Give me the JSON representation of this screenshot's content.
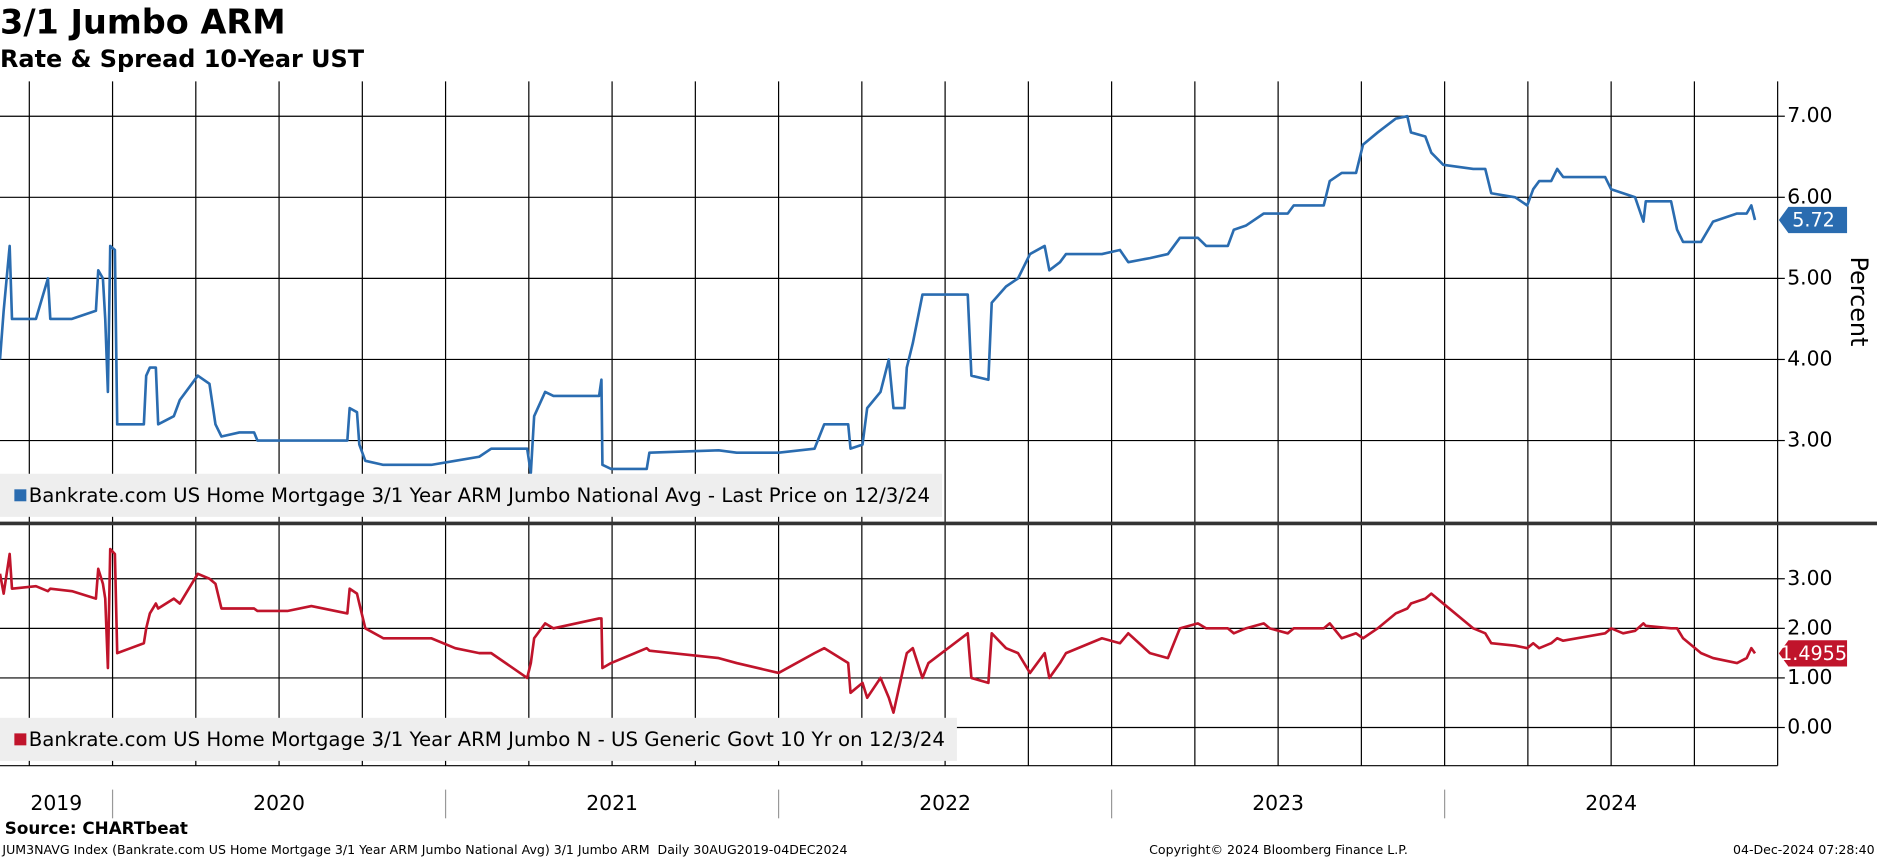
{
  "header": {
    "title": "3/1 Jumbo ARM",
    "subtitle": "Rate & Spread 10-Year UST"
  },
  "footer": {
    "source": "Source: CHARTbeat",
    "left": "JUM3NAVG Index (Bankrate.com US Home Mortgage 3/1 Year ARM Jumbo National Avg) 3/1 Jumbo ARM  Daily 30AUG2019-04DEC2024",
    "center": "Copyright© 2024 Bloomberg Finance L.P.",
    "right": "04-Dec-2024 07:28:40"
  },
  "chart_data": {
    "type": "line",
    "y_label": "Percent",
    "grid": true,
    "xlim": [
      2019.662,
      2025.0
    ],
    "xticks": [
      2019,
      2020,
      2021,
      2022,
      2023,
      2024
    ],
    "xgrid": [
      2019.75,
      2020,
      2020.25,
      2020.5,
      2020.75,
      2021,
      2021.25,
      2021.5,
      2021.75,
      2022,
      2022.25,
      2022.5,
      2022.75,
      2023,
      2023.25,
      2023.5,
      2023.75,
      2024,
      2024.25,
      2024.5,
      2024.75
    ],
    "panels": [
      {
        "ylim": [
          2.0,
          7.43
        ],
        "yticks": [
          {
            "value": 3,
            "label": "3.00"
          },
          {
            "value": 4,
            "label": "4.00"
          },
          {
            "value": 5,
            "label": "5.00"
          },
          {
            "value": 6,
            "label": "6.00"
          },
          {
            "value": 7,
            "label": "7.00"
          }
        ]
      },
      {
        "ylim": [
          -0.77,
          4.08
        ],
        "yticks": [
          {
            "value": 0,
            "label": "0.00"
          },
          {
            "value": 1,
            "label": "1.00"
          },
          {
            "value": 2,
            "label": "2.00"
          },
          {
            "value": 3,
            "label": "3.00"
          }
        ]
      }
    ],
    "x": [
      2019.662,
      2019.673,
      2019.691,
      2019.698,
      2019.77,
      2019.806,
      2019.813,
      2019.878,
      2019.95,
      2019.957,
      2019.971,
      2019.978,
      2019.986,
      2019.993,
      2020.007,
      2020.014,
      2020.094,
      2020.101,
      2020.112,
      2020.13,
      2020.137,
      2020.184,
      2020.202,
      2020.238,
      2020.256,
      2020.291,
      2020.309,
      2020.327,
      2020.381,
      2020.425,
      2020.435,
      2020.525,
      2020.597,
      2020.705,
      2020.712,
      2020.734,
      2020.741,
      2020.759,
      2020.813,
      2020.957,
      2021.029,
      2021.101,
      2021.137,
      2021.245,
      2021.256,
      2021.266,
      2021.299,
      2021.324,
      2021.461,
      2021.468,
      2021.471,
      2021.497,
      2021.604,
      2021.612,
      2021.82,
      2021.874,
      2022.0,
      2022.108,
      2022.137,
      2022.209,
      2022.216,
      2022.252,
      2022.266,
      2022.306,
      2022.331,
      2022.345,
      2022.378,
      2022.385,
      2022.403,
      2022.432,
      2022.45,
      2022.568,
      2022.579,
      2022.63,
      2022.64,
      2022.683,
      2022.719,
      2022.755,
      2022.799,
      2022.813,
      2022.845,
      2022.863,
      2022.971,
      2023.025,
      2023.05,
      2023.115,
      2023.169,
      2023.205,
      2023.259,
      2023.284,
      2023.349,
      2023.367,
      2023.403,
      2023.457,
      2023.475,
      2023.529,
      2023.547,
      2023.637,
      2023.655,
      2023.691,
      2023.734,
      2023.755,
      2023.799,
      2023.853,
      2023.888,
      2023.899,
      2023.942,
      2023.96,
      2023.996,
      2024.086,
      2024.122,
      2024.14,
      2024.212,
      2024.248,
      2024.266,
      2024.284,
      2024.32,
      2024.338,
      2024.356,
      2024.482,
      2024.5,
      2024.536,
      2024.572,
      2024.597,
      2024.604,
      2024.68,
      2024.698,
      2024.716,
      2024.77,
      2024.806,
      2024.878,
      2024.907,
      2024.921,
      2024.932
    ],
    "series": [
      {
        "name": "Bankrate.com US Home Mortgage 3/1 Year ARM Jumbo National Avg - Last Price on 12/3/24",
        "color": "#2a6cb0",
        "panel": 0,
        "values": [
          4.0,
          4.6,
          5.4,
          4.5,
          4.5,
          5.0,
          4.5,
          4.5,
          4.6,
          5.1,
          5.0,
          4.5,
          3.6,
          5.4,
          5.35,
          3.2,
          3.2,
          3.8,
          3.9,
          3.9,
          3.2,
          3.3,
          3.5,
          3.7,
          3.8,
          3.7,
          3.2,
          3.05,
          3.1,
          3.1,
          3.0,
          3.0,
          3.0,
          3.0,
          3.4,
          3.35,
          2.95,
          2.75,
          2.7,
          2.7,
          2.75,
          2.8,
          2.9,
          2.9,
          2.6,
          3.3,
          3.6,
          3.55,
          3.55,
          3.75,
          2.7,
          2.65,
          2.65,
          2.85,
          2.88,
          2.85,
          2.85,
          2.9,
          3.2,
          3.2,
          2.9,
          2.95,
          3.4,
          3.6,
          4.0,
          3.4,
          3.4,
          3.9,
          4.2,
          4.8,
          4.8,
          4.8,
          3.8,
          3.75,
          4.7,
          4.9,
          5.0,
          5.3,
          5.4,
          5.1,
          5.2,
          5.3,
          5.3,
          5.35,
          5.2,
          5.25,
          5.3,
          5.5,
          5.5,
          5.4,
          5.4,
          5.6,
          5.65,
          5.8,
          5.8,
          5.8,
          5.9,
          5.9,
          6.2,
          6.3,
          6.3,
          6.65,
          6.8,
          6.97,
          7.0,
          6.8,
          6.75,
          6.55,
          6.4,
          6.35,
          6.35,
          6.05,
          6.0,
          5.9,
          6.1,
          6.2,
          6.2,
          6.35,
          6.25,
          6.25,
          6.1,
          6.05,
          6.0,
          5.7,
          5.95,
          5.95,
          5.6,
          5.45,
          5.45,
          5.7,
          5.8,
          5.8,
          5.9,
          5.72
        ]
      },
      {
        "name": "Bankrate.com US Home Mortgage 3/1 Year ARM Jumbo N - US Generic Govt 10 Yr on 12/3/24",
        "color": "#c0142b",
        "panel": 1,
        "values": [
          3.1,
          2.7,
          3.5,
          2.8,
          2.85,
          2.75,
          2.8,
          2.75,
          2.6,
          3.2,
          2.9,
          2.6,
          1.2,
          3.6,
          3.5,
          1.5,
          1.7,
          2.0,
          2.3,
          2.5,
          2.4,
          2.6,
          2.5,
          2.9,
          3.1,
          3.0,
          2.9,
          2.4,
          2.4,
          2.4,
          2.35,
          2.35,
          2.45,
          2.3,
          2.8,
          2.7,
          2.5,
          2.0,
          1.8,
          1.8,
          1.6,
          1.5,
          1.5,
          1.0,
          1.3,
          1.8,
          2.1,
          2.0,
          2.2,
          2.2,
          1.2,
          1.3,
          1.6,
          1.55,
          1.4,
          1.3,
          1.1,
          1.5,
          1.6,
          1.3,
          0.7,
          0.9,
          0.6,
          1.0,
          0.6,
          0.3,
          1.3,
          1.5,
          1.6,
          1.0,
          1.3,
          1.9,
          1.0,
          0.9,
          1.9,
          1.6,
          1.5,
          1.1,
          1.5,
          1.0,
          1.3,
          1.5,
          1.8,
          1.7,
          1.9,
          1.5,
          1.4,
          2.0,
          2.1,
          2.0,
          2.0,
          1.9,
          2.0,
          2.1,
          2.0,
          1.9,
          2.0,
          2.0,
          2.1,
          1.8,
          1.9,
          1.8,
          2.0,
          2.3,
          2.4,
          2.5,
          2.6,
          2.7,
          2.5,
          2.0,
          1.9,
          1.7,
          1.65,
          1.6,
          1.7,
          1.6,
          1.7,
          1.8,
          1.75,
          1.9,
          2.0,
          1.9,
          1.95,
          2.1,
          2.05,
          2.0,
          2.0,
          1.8,
          1.5,
          1.4,
          1.3,
          1.4,
          1.6,
          1.4955
        ]
      }
    ]
  }
}
